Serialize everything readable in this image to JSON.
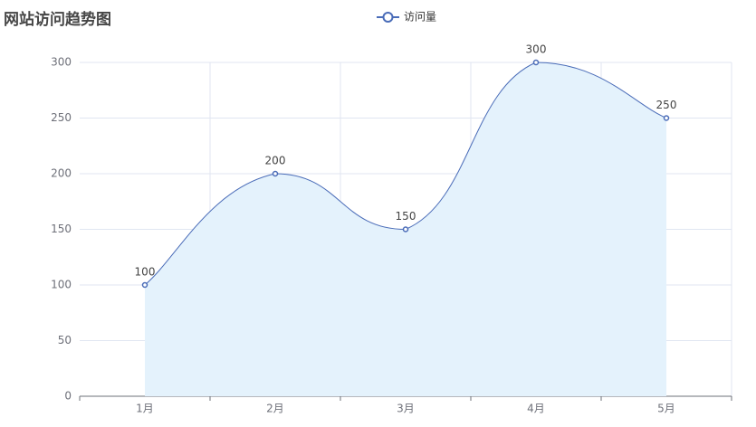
{
  "chart_data": {
    "type": "line",
    "title": "网站访问趋势图",
    "categories": [
      "1月",
      "2月",
      "3月",
      "4月",
      "5月"
    ],
    "series": [
      {
        "name": "访问量",
        "color": "#4a6cb8",
        "area_color": "#e4f2fc",
        "values": [
          100,
          200,
          150,
          300,
          250
        ]
      }
    ],
    "ylim": [
      0,
      300
    ],
    "yticks": [
      0,
      50,
      100,
      150,
      200,
      250,
      300
    ],
    "grid": true,
    "smooth": true,
    "show_value_labels": true,
    "legend_position": "top"
  }
}
